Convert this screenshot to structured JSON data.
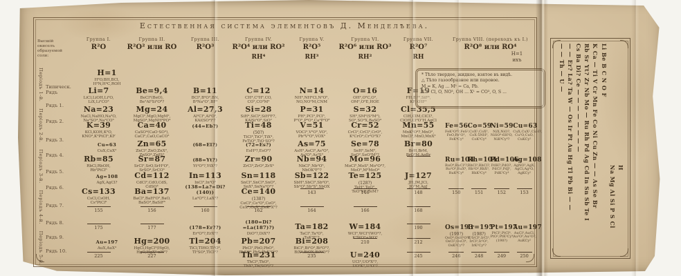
{
  "title": "Естественная система элементовъ Д. Менделѣева.",
  "left_header": {
    "line1": "Высшій окиселъ",
    "line2": "образуемой соли:"
  },
  "weight_note": {
    "line1": "H=1",
    "line2": "ихъ"
  },
  "note_box": {
    "lines": [
      "* Тѣло твердое, жидкое, взятое въ видѣ.",
      "△ Тѣло газообразное или паровое.",
      "M = K, Ag ...  M¹ = Ca, Pb.",
      "X = Cl, O, NO³, OH ...  X¹ = CO³, O, S ..."
    ]
  },
  "groups": [
    {
      "name": "Группа I.",
      "oxide": "R²O",
      "hydride": ""
    },
    {
      "name": "Группа II.",
      "oxide": "R²O² или RO",
      "hydride": ""
    },
    {
      "name": "Группа III.",
      "oxide": "R²O³",
      "hydride": ""
    },
    {
      "name": "Группа IV.",
      "oxide": "R²O⁴ или RO²",
      "hydride": "RH⁴"
    },
    {
      "name": "Группа V.",
      "oxide": "R²O⁵",
      "hydride": "RH³"
    },
    {
      "name": "Группа VI.",
      "oxide": "R²O⁶ или RO³",
      "hydride": "RH²"
    },
    {
      "name": "Группа VII.",
      "oxide": "R²O⁷",
      "hydride": "RH"
    },
    {
      "name": "Группа VIII. (переходъ къ I.)",
      "oxide": "R²O⁸ или RO⁴",
      "hydride": ""
    }
  ],
  "periods": [
    "Періодъ 1-й.",
    "Періодъ 2-й.",
    "Періодъ 3-й.",
    "Періодъ 4-й.",
    "Періодъ 5-й."
  ],
  "rows": [
    {
      "label": "",
      "cells": [
        {
          "main": "H=1",
          "sub": "H²O,BH,BCl,|H³N,H⁴C,ROH",
          "ofs": true
        },
        null,
        null,
        null,
        null,
        null,
        null
      ]
    },
    {
      "label": "Типическ.\nРядъ",
      "cells": [
        {
          "main": "Li=7",
          "sub": "LiCl,LiOH,Li²O,|LiX,Li²CO³"
        },
        {
          "main": "Be=9,4",
          "sub": "BeCl²(BeO),|Be²Al²Si²O⁸?"
        },
        {
          "main": "B=11",
          "sub": "BCl³,B²O³,BN,|B⁴Na²O⁷,BF³"
        },
        {
          "main": "C=12",
          "sub": "CH⁴,C²H⁶,CO,|CO²,CO³M²"
        },
        {
          "main": "N=14",
          "sub": "NH³,NH⁴Cl,N²O⁵,|NO,NO²M,CNM"
        },
        {
          "main": "O=16",
          "sub": "OH²,O²C,O³,|OM²,O²E,HOE"
        },
        {
          "main": "F=19",
          "sub": "FH,BF³,SiF⁴,|KF,KHF²"
        }
      ]
    },
    {
      "label": "Рядъ 1.",
      "cells": [
        {
          "main": "Na=23",
          "sub": "NaCl,NaHO,Na²O,|Na²SO⁴,Na²CO³"
        },
        {
          "main": "Mg=24",
          "sub": "MgCl²,MgO,MgM²,|MgSO⁴,MgNH⁴PO⁴"
        },
        {
          "main": "Al=27,3",
          "sub": "Al²Cl⁶,Al²O³,|KAl(SO⁴)²?"
        },
        {
          "main": "Si=28",
          "sub": "SiH⁴,SiCl⁴,SiH³F?,|KAlSi³O⁸,SiO²"
        },
        {
          "main": "P=31",
          "sub": "PH³,PCl³,PCl⁵,|P²O⁵,P²O³,Ca³P²O⁸"
        },
        {
          "main": "S=32",
          "sub": "SH²,SM²(S²M²),|SO²,SO³X,BaSO⁴"
        },
        {
          "main": "Cl=35,5",
          "sub": "ClH,ClM,ClCl?,|ClOH,Cl²O⁷H,AgCl"
        }
      ]
    },
    {
      "label": "Рядъ 2.",
      "cells": [
        {
          "main": "K=39",
          "sub": "KCl,KOH,K²O,|KNO³,K²PtCl⁶,KF"
        },
        {
          "main": "Ca=40",
          "sub": "CaSO⁴(CaO·SO³),|CaCl²,CaO,CaCO³"
        },
        {
          "main": "(44=Eb?)",
          "small": true
        },
        {
          "main": "Ti=48",
          "sup": "(50?)",
          "sub": "TiCl⁴,TiO²,TiX⁴,|FeTiO³,TiO·SO³?"
        },
        {
          "main": "V=51",
          "sub": "VOCl³,V²O⁵,VO²,|Pb³V²O⁸,VOX³"
        },
        {
          "main": "Cr=52",
          "sub": "CrCl²,CrCl³,CrO³,|K²CrO⁴,Cr²O³X?"
        },
        {
          "main": "Mn=55",
          "sub": "MnK²O⁴?,MnO²,|MnCl²,MnO,MnX²"
        }
      ],
      "viii": [
        {
          "main": "Fe=56",
          "sub": "FeK²O⁴?,FeS²,|FeO,Fe²O³,|FeK⁴Cy⁶"
        },
        {
          "main": "Co=59",
          "sub": "CoX²,CoX³,|CoX·5NH³,|CoK³Cy⁶"
        },
        {
          "main": "Ni=59",
          "sub": "NiX,NiO?,|NiSO⁴·6H²O,|NiK⁴Cy⁶?"
        },
        {
          "main": "Cu=63",
          "sub": "CuX,CuX²,CuH?,|Cu²O,CuO,|CuKCy²"
        }
      ]
    },
    {
      "label": "Рядъ 3.",
      "cells": [
        {
          "main": "Cu=63",
          "small": true,
          "ofs": true,
          "sub": "CuX,CuX²"
        },
        {
          "main": "Zn=65",
          "sub": "ZnCl²,ZnO,ZnX²,|ZnSO⁴,ZnEt²"
        },
        {
          "main": "(68=El?)",
          "small": true
        },
        {
          "main": "(72=Es?)",
          "small": true,
          "sub": "EsH⁴?,EsO²?"
        },
        {
          "main": "As=75",
          "sub": "AsH³,AsCl³,As²O³,|As²O⁵,As²S³"
        },
        {
          "main": "Se=78",
          "sub": "SeH²,SeM²,|SeO²,SeO³M²?"
        },
        {
          "main": "Br=80",
          "sub": "BrH,BrM,|BrO³M,AgBr"
        }
      ]
    },
    {
      "label": "Рядъ 4.",
      "cells": [
        {
          "main": "Rb=85",
          "sub": "RbCl,RbOH,|Rb²PtCl⁶"
        },
        {
          "main": "Sr=87",
          "sub": "SrCl²,SrO,SrH²O²,|SrSO⁴,SrCO³"
        },
        {
          "main": "(88=Yt?)",
          "small": true,
          "sub": "Yt²O³?,YtX³?"
        },
        {
          "main": "Zr=90",
          "sub": "ZrCl⁴,ZrO²,ZrX⁴"
        },
        {
          "main": "Nb=94",
          "sub": "NbCl⁵,Nb²O⁵,|NbOK²F⁵?"
        },
        {
          "main": "Mo=96",
          "sub": "MoCl⁵,MoS²,Mo²O³?,|MoO³,M²MoO⁴"
        },
        {
          "dash": true,
          "num": ""
        }
      ],
      "viii": [
        {
          "main": "Ru=104",
          "sub": "RuO⁴,RuCl³?,|Ru²O³,RuX⁴,|RuK⁴Cy⁶"
        },
        {
          "main": "Rh=104",
          "sub": "RhCl³,RhCl?,|Rh²O³,RhX³,|RhK³Cy⁶"
        },
        {
          "main": "Pd=106",
          "sub": "PdH?,PdO?,|PdCl²,PdJ²,|PdK²Cy⁴"
        },
        {
          "main": "Ag=108",
          "sub": "AgNO³,AgX,|AgCl,Ag²O,|AgKCy²"
        }
      ]
    },
    {
      "label": "Рядъ 5.",
      "cells": [
        {
          "main": "Ag=108",
          "small": true,
          "ofs": true,
          "sub": "AgX,AgCl?"
        },
        {
          "main": "Cd=112",
          "sub": "CdCl²,CdO,CdS,|CdSO⁴"
        },
        {
          "main": "In=113",
          "sub": "InCl³,In²O³"
        },
        {
          "main": "Sn=118",
          "sub": "SnCl²,SnCl⁴,SnO²,|SnX⁴,SnNa²O³?"
        },
        {
          "main": "Sb=122",
          "sub": "SbH³,SbCl³,Sb²O³,|Sb²O⁵,Sb²S³,SbOX"
        },
        {
          "main": "Te=125",
          "sup": "(128?)",
          "sub": "TeH²,TeO²,|TeO³M²,TeM?"
        },
        {
          "main": "J=127",
          "sub": "JH,JM,JCl,|JO³M,AgJ"
        }
      ]
    },
    {
      "label": "Рядъ 6.",
      "cells": [
        {
          "main": "Cs=133",
          "sub": "CsCl,CsOH,|Cs²PtCl⁶"
        },
        {
          "main": "Ba=137",
          "sub": "BaCl²,BaH²O²,BaO,|BaSO⁴,BaSiF⁶"
        },
        {
          "main": "(138=La?=Di?(140))",
          "small": true,
          "sub": "La²O³?,LaX³?"
        },
        {
          "main": "Ce=140",
          "sup": "(138?)",
          "sub": "CeCl³,Ce²O³,CeO²,|CeX³,CeX⁴,CeK²X⁶?"
        },
        {
          "dash": true,
          "num": "143"
        },
        {
          "dash": true,
          "num": "146"
        },
        {
          "dash": true,
          "num": "148"
        }
      ],
      "viii": [
        {
          "dash": true,
          "num": "150"
        },
        {
          "dash": true,
          "num": "151"
        },
        {
          "dash": true,
          "num": "152"
        },
        {
          "dash": true,
          "num": "153"
        }
      ]
    },
    {
      "label": "Рядъ 7.",
      "cells": [
        {
          "dash": true,
          "num": "155"
        },
        {
          "dash": true,
          "num": "156"
        },
        {
          "dash": true,
          "num": "160"
        },
        {
          "dash": true,
          "num": "162"
        },
        {
          "dash": true,
          "num": "164"
        },
        {
          "dash": true,
          "num": "166"
        },
        {
          "dash": true,
          "num": "168"
        }
      ]
    },
    {
      "label": "Рядъ 8.",
      "cells": [
        {
          "dash": true,
          "num": "175"
        },
        {
          "dash": true,
          "num": "177"
        },
        {
          "main": "(178=Er??)",
          "small": true,
          "sub": "Er²O³?,ErX³?"
        },
        {
          "main": "(180=Di?=La(187)?)",
          "small": true,
          "sub": "DiO²?,DiX³?"
        },
        {
          "main": "Ta=182",
          "sub": "TaCl⁵,Ta²O⁵,|TaK²F⁷?"
        },
        {
          "main": "W=184",
          "sub": "WCl⁶,WCl⁵(WO³?,|K²WO⁴+WO³"
        },
        {
          "dash": true,
          "num": "190"
        }
      ],
      "viii": [
        {
          "main": "Os=193",
          "sup": "(199?)",
          "sub": "OsO⁴,OsH²O⁵?,|OsCl²,OsCl⁴,|OsK²Cy⁶?"
        },
        {
          "main": "Ir=195",
          "sup": "(198?)",
          "sub": "K²IrCl⁶,IrCl²,|IrCl³,Ir²O³,|IrK³Cy⁶?"
        },
        {
          "main": "Pt=197",
          "sub": "PtCl²,PtCl⁴,|PtO²,PtK²Cy⁴,|(198?)"
        },
        {
          "main": "Au=197",
          "sub": "AuCl³,AuCl,|Au²O³,Au²O?,|AuKCy²"
        }
      ]
    },
    {
      "label": "Рядъ 9.",
      "cells": [
        {
          "main": "Au=197",
          "small": true,
          "ofs": true,
          "sub": "AuX,AuX³"
        },
        {
          "main": "Hg=200",
          "sub": "HgCl,HgCl²(HgO),|HgO,HgX²·nH³?"
        },
        {
          "main": "Tl=204",
          "sub": "TlCl,TlHO,Tl²O³,|Tl²SO⁴,TlCl³?"
        },
        {
          "main": "Pb=207",
          "sub": "PbCl²,PbO,PbO²,|PbSO⁴,PbS,PbK²O⁴?"
        },
        {
          "main": "Bi=208",
          "sub": "BiCl³,Bi²O³,Bi²O⁵?,|BiX³,BiOX,BiNO³?"
        },
        {
          "dash": true,
          "num": "210"
        },
        {
          "dash": true,
          "num": "212"
        }
      ]
    },
    {
      "label": "Рядъ 10.",
      "cells": [
        {
          "dash": true,
          "num": "225"
        },
        {
          "dash": true,
          "num": "227"
        },
        null,
        {
          "main": "Th=231",
          "sub": "ThCl⁴,ThO²,|ThX⁴,Th(SO⁴)²?"
        },
        {
          "dash": true,
          "num": "235"
        },
        {
          "main": "U=240",
          "sub": "UCl⁴,UO²X²?,|UO²K²,U²O⁵?"
        },
        {
          "dash": true,
          "num": "245"
        }
      ],
      "viii": [
        {
          "dash": true,
          "num": "246"
        },
        {
          "dash": true,
          "num": "248"
        },
        {
          "dash": true,
          "num": "249"
        },
        {
          "dash": true,
          "num": "250"
        }
      ]
    }
  ],
  "side_panel": {
    "lines": [
      {
        "text": "H",
        "indent": true
      },
      {
        "text": "Na Mg Al Si P S Cl",
        "indent": true
      },
      {
        "text": "Li Be  B C N O F",
        "indent": false
      },
      {
        "text": "K Ca — Ti V Cr Mn Fe Co Ni Cu Zn — — As Se Br",
        "indent": false
      },
      {
        "text": "Rb Sr Yt? Zr Nb Mo — Ru Rh Pd Ag Cd In Sn Sb Te I",
        "indent": false
      },
      {
        "text": "Cs Ba Di? Ce — — — — — — — —",
        "indent": false
      },
      {
        "text": "— — Er? La? Ta W — Os Ir Pt Au Hg Tl Pb Bi — —",
        "indent": false
      },
      {
        "text": "— — Th — U —",
        "indent": false
      }
    ]
  }
}
